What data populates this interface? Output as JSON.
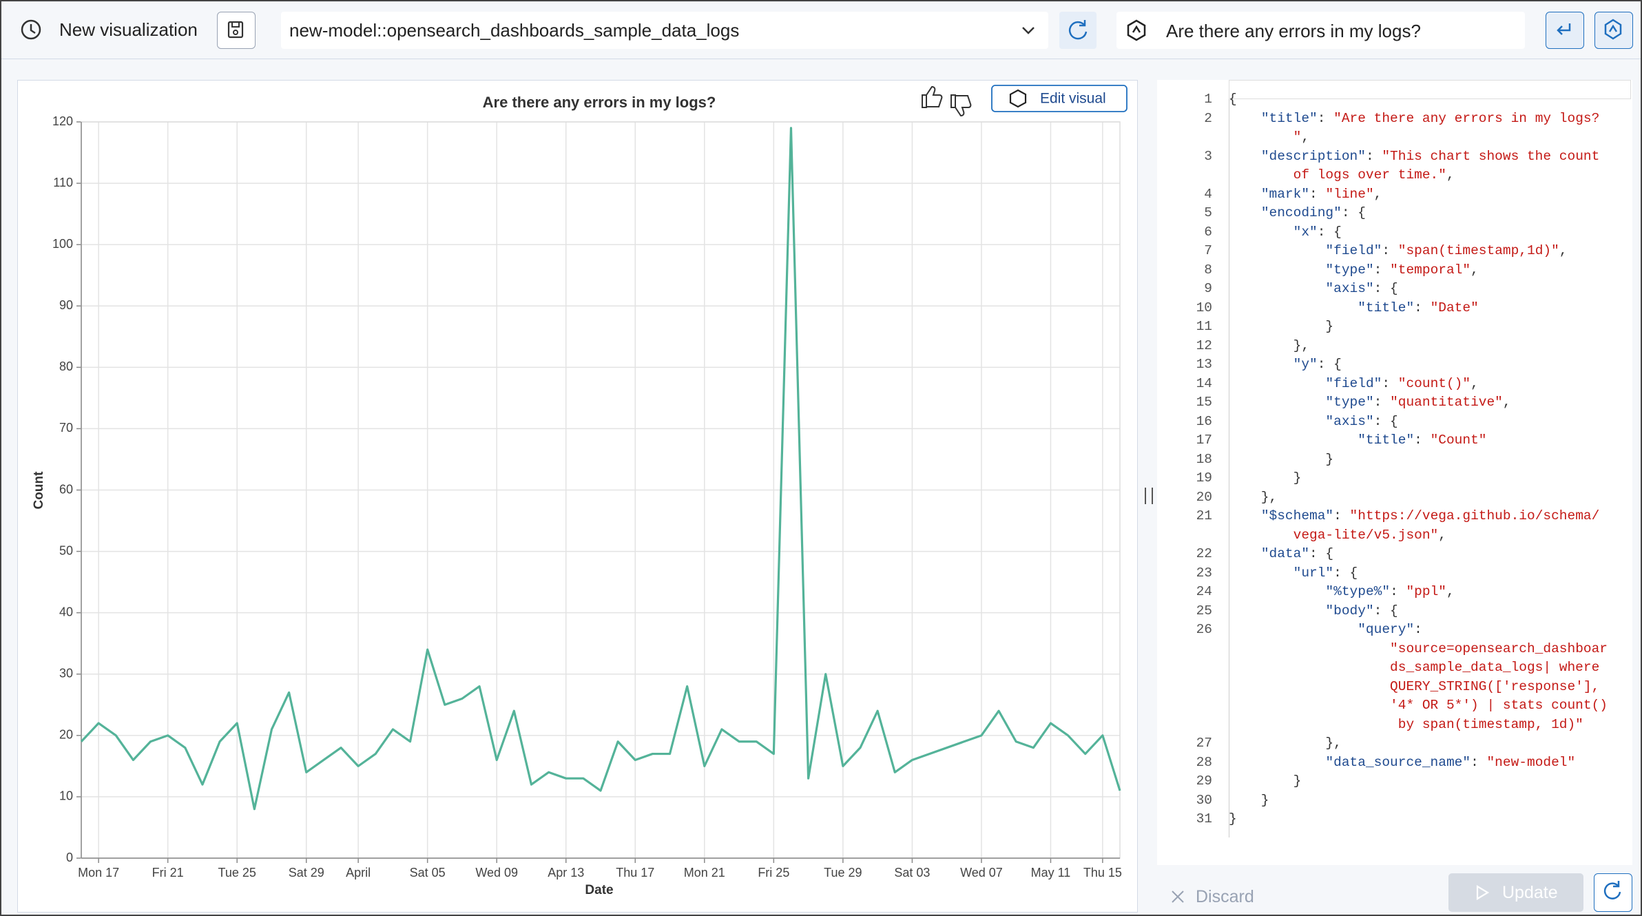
{
  "toolbar": {
    "title": "New visualization",
    "dataset": "new-model::opensearch_dashboards_sample_data_logs",
    "question": "Are there any errors in my logs?"
  },
  "chart_data": {
    "type": "line",
    "title": "Are there any errors in my logs?",
    "x_label": "Date",
    "y_label": "Count",
    "color": "#54b399",
    "grid": true,
    "edit_button": "Edit visual",
    "x": [
      0,
      1,
      2,
      3,
      4,
      5,
      6,
      7,
      8,
      9,
      10,
      11,
      12,
      13,
      14,
      15,
      16,
      17,
      18,
      19,
      20,
      21,
      22,
      23,
      24,
      25,
      26,
      27,
      28,
      29,
      30,
      31,
      32,
      33,
      34,
      35,
      36,
      37,
      38,
      39,
      40,
      41,
      42,
      43,
      44,
      45,
      46,
      47,
      48,
      52,
      53,
      54,
      55,
      56,
      57,
      58,
      59,
      60
    ],
    "values": [
      19,
      22,
      20,
      16,
      19,
      20,
      18,
      12,
      19,
      22,
      8,
      21,
      27,
      14,
      16,
      18,
      15,
      17,
      21,
      19,
      34,
      25,
      26,
      28,
      16,
      24,
      12,
      14,
      13,
      13,
      11,
      19,
      16,
      17,
      17,
      28,
      15,
      21,
      19,
      19,
      17,
      119,
      13,
      30,
      15,
      18,
      24,
      14,
      16,
      20,
      24,
      19,
      18,
      22,
      20,
      17,
      20,
      11
    ],
    "xlim": [
      0,
      60
    ],
    "xticks": [
      {
        "value": 1,
        "label": "Mon 17"
      },
      {
        "value": 5,
        "label": "Fri 21"
      },
      {
        "value": 9,
        "label": "Tue 25"
      },
      {
        "value": 13,
        "label": "Sat 29"
      },
      {
        "value": 16,
        "label": "April"
      },
      {
        "value": 20,
        "label": "Sat 05"
      },
      {
        "value": 24,
        "label": "Wed 09"
      },
      {
        "value": 28,
        "label": "Apr 13"
      },
      {
        "value": 32,
        "label": "Thu 17"
      },
      {
        "value": 36,
        "label": "Mon 21"
      },
      {
        "value": 40,
        "label": "Fri 25"
      },
      {
        "value": 44,
        "label": "Tue 29"
      },
      {
        "value": 48,
        "label": "Sat 03"
      },
      {
        "value": 52,
        "label": "Wed 07"
      },
      {
        "value": 56,
        "label": "May 11"
      },
      {
        "value": 59,
        "label": "Thu 15"
      }
    ],
    "ylim": [
      0,
      120
    ],
    "yticks": [
      0,
      10,
      20,
      30,
      40,
      50,
      60,
      70,
      80,
      90,
      100,
      110,
      120
    ]
  },
  "editor": {
    "lines": [
      {
        "number": 1,
        "parts": [
          "{"
        ]
      },
      {
        "number": 2,
        "parts": [
          "    \"title\": \"Are there any errors in my logs?",
          "        \","
        ]
      },
      {
        "number": 3,
        "parts": [
          "    \"description\": \"This chart shows the count",
          "        of logs over time.\","
        ]
      },
      {
        "number": 4,
        "parts": [
          "    \"mark\": \"line\","
        ]
      },
      {
        "number": 5,
        "parts": [
          "    \"encoding\": {"
        ]
      },
      {
        "number": 6,
        "parts": [
          "        \"x\": {"
        ]
      },
      {
        "number": 7,
        "parts": [
          "            \"field\": \"span(timestamp,1d)\","
        ]
      },
      {
        "number": 8,
        "parts": [
          "            \"type\": \"temporal\","
        ]
      },
      {
        "number": 9,
        "parts": [
          "            \"axis\": {"
        ]
      },
      {
        "number": 10,
        "parts": [
          "                \"title\": \"Date\""
        ]
      },
      {
        "number": 11,
        "parts": [
          "            }"
        ]
      },
      {
        "number": 12,
        "parts": [
          "        },"
        ]
      },
      {
        "number": 13,
        "parts": [
          "        \"y\": {"
        ]
      },
      {
        "number": 14,
        "parts": [
          "            \"field\": \"count()\","
        ]
      },
      {
        "number": 15,
        "parts": [
          "            \"type\": \"quantitative\","
        ]
      },
      {
        "number": 16,
        "parts": [
          "            \"axis\": {"
        ]
      },
      {
        "number": 17,
        "parts": [
          "                \"title\": \"Count\""
        ]
      },
      {
        "number": 18,
        "parts": [
          "            }"
        ]
      },
      {
        "number": 19,
        "parts": [
          "        }"
        ]
      },
      {
        "number": 20,
        "parts": [
          "    },"
        ]
      },
      {
        "number": 21,
        "parts": [
          "    \"$schema\": \"https://vega.github.io/schema/",
          "        vega-lite/v5.json\","
        ]
      },
      {
        "number": 22,
        "parts": [
          "    \"data\": {"
        ]
      },
      {
        "number": 23,
        "parts": [
          "        \"url\": {"
        ]
      },
      {
        "number": 24,
        "parts": [
          "            \"%type%\": \"ppl\","
        ]
      },
      {
        "number": 25,
        "parts": [
          "            \"body\": {"
        ]
      },
      {
        "number": 26,
        "parts": [
          "                \"query\":",
          "                    \"source=opensearch_dashboar",
          "                    ds_sample_data_logs| where",
          "                    QUERY_STRING(['response'],",
          "                    '4* OR 5*') | stats count()",
          "                     by span(timestamp, 1d)\""
        ]
      },
      {
        "number": 27,
        "parts": [
          "            },"
        ]
      },
      {
        "number": 28,
        "parts": [
          "            \"data_source_name\": \"new-model\""
        ]
      },
      {
        "number": 29,
        "parts": [
          "        }"
        ]
      },
      {
        "number": 30,
        "parts": [
          "    }"
        ]
      },
      {
        "number": 31,
        "parts": [
          "}"
        ]
      }
    ],
    "discard": "Discard",
    "update": "Update"
  }
}
